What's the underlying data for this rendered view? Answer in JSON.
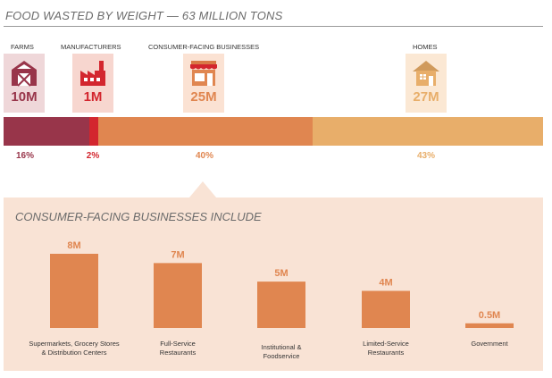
{
  "header": {
    "title": "FOOD WASTED BY WEIGHT — 63 MILLION TONS"
  },
  "colors": {
    "farms": "#98354a",
    "farms_badge": "#efd7d9",
    "manufacturers": "#d3262e",
    "manufacturers_badge": "#f7d6cf",
    "consumer": "#e08650",
    "consumer_badge": "#fbe2d3",
    "homes": "#e8ae6a",
    "homes_badge": "#fbe8d4",
    "panel": "#f9e3d5",
    "bar": "#e08650",
    "label": "#e08650"
  },
  "chart_data": [
    {
      "type": "bar",
      "stacked": true,
      "orientation": "horizontal",
      "title": "FOOD WASTED BY WEIGHT — 63 MILLION TONS",
      "categories": [
        "FARMS",
        "MANUFACTURERS",
        "CONSUMER-FACING BUSINESSES",
        "HOMES"
      ],
      "icons": [
        "barn-icon",
        "factory-icon",
        "storefront-icon",
        "house-icon"
      ],
      "value_labels": [
        "10M",
        "1M",
        "25M",
        "27M"
      ],
      "values": [
        10,
        1,
        25,
        27
      ],
      "percent_labels": [
        "16%",
        "2%",
        "40%",
        "43%"
      ],
      "percents": [
        16,
        2,
        40,
        43
      ],
      "units": "million tons"
    },
    {
      "type": "bar",
      "title": "CONSUMER-FACING BUSINESSES INCLUDE",
      "categories": [
        "Supermarkets, Grocery Stores\n& Distribution Centers",
        "Full-Service\nRestaurants",
        "Institutional &\nFoodservice",
        "Limited-Service\nRestaurants",
        "Government"
      ],
      "values": [
        8,
        7,
        5,
        4,
        0.5
      ],
      "value_labels": [
        "8M",
        "7M",
        "5M",
        "4M",
        "0.5M"
      ],
      "grid": false
    }
  ]
}
